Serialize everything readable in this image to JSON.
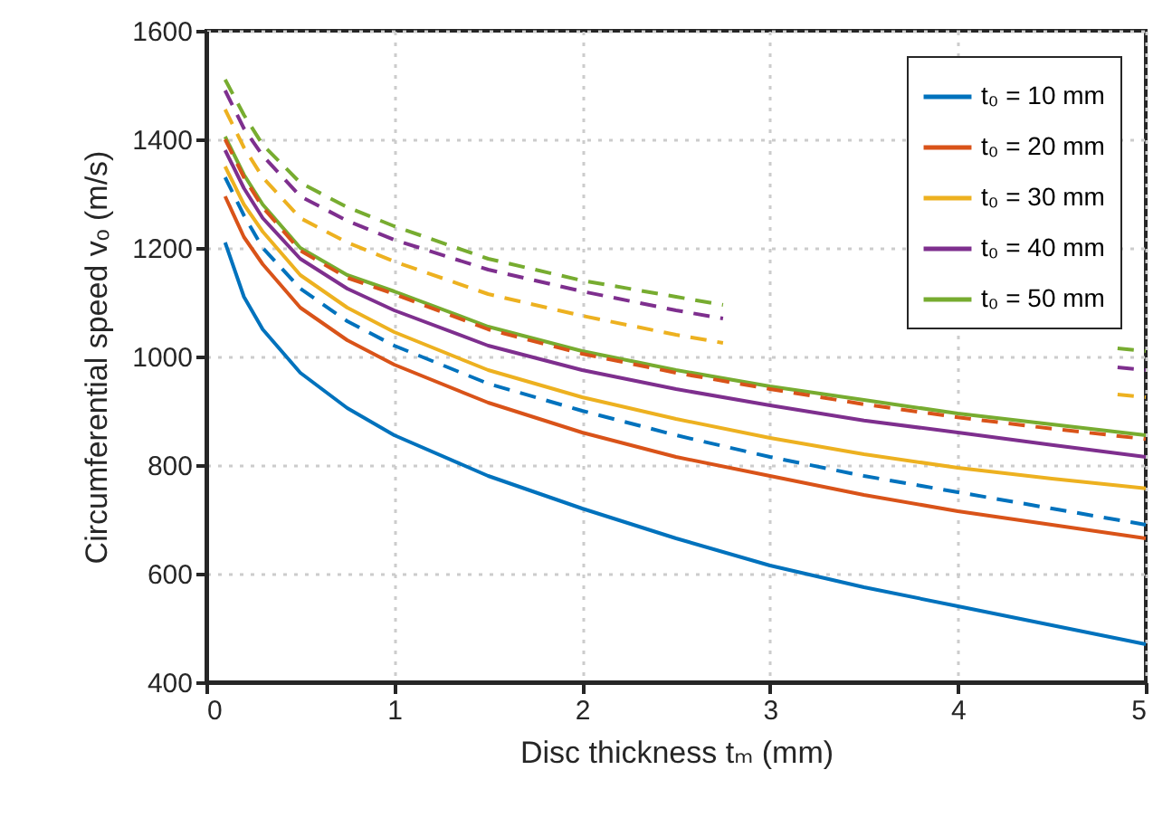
{
  "chart_data": {
    "type": "line",
    "xlabel": "Disc thickness tₘ (mm)",
    "ylabel": "Circumferential speed vₒ (m/s)",
    "x": [
      0.1,
      0.2,
      0.3,
      0.5,
      0.75,
      1,
      1.5,
      2,
      2.5,
      3,
      3.5,
      4,
      4.5,
      5
    ],
    "xlim": [
      0,
      5
    ],
    "xticks": [
      0,
      1,
      2,
      3,
      4,
      5
    ],
    "ylim": [
      400,
      1600
    ],
    "yticks": [
      400,
      600,
      800,
      1000,
      1200,
      1400,
      1600
    ],
    "grid": true,
    "legend": "top right",
    "series": [
      {
        "name": "t₀ = 10 mm",
        "color": "#0072bd",
        "line_style": "solid",
        "values": [
          1210,
          1110,
          1050,
          970,
          905,
          855,
          780,
          720,
          665,
          615,
          575,
          540,
          505,
          470
        ]
      },
      {
        "name": "t₀ = 20 mm",
        "color": "#d95319",
        "line_style": "solid",
        "values": [
          1295,
          1220,
          1170,
          1090,
          1030,
          985,
          915,
          860,
          815,
          780,
          745,
          715,
          690,
          665
        ]
      },
      {
        "name": "t₀ = 30 mm",
        "color": "#edb120",
        "line_style": "solid",
        "values": [
          1350,
          1280,
          1230,
          1150,
          1090,
          1045,
          975,
          925,
          885,
          850,
          820,
          795,
          775,
          757
        ]
      },
      {
        "name": "t₀ = 40 mm",
        "color": "#7e2f8e",
        "line_style": "solid",
        "values": [
          1380,
          1310,
          1255,
          1180,
          1125,
          1085,
          1020,
          975,
          940,
          910,
          882,
          860,
          837,
          815
        ]
      },
      {
        "name": "t₀ = 50 mm",
        "color": "#77ac30",
        "line_style": "solid",
        "values": [
          1405,
          1335,
          1280,
          1200,
          1150,
          1120,
          1055,
          1010,
          975,
          945,
          920,
          895,
          875,
          855
        ]
      },
      {
        "color": "#0072bd",
        "line_style": "dashed",
        "values": [
          1330,
          1260,
          1200,
          1125,
          1065,
          1020,
          950,
          900,
          855,
          815,
          780,
          750,
          720,
          690
        ]
      },
      {
        "color": "#d95319",
        "line_style": "dashed",
        "values": [
          1400,
          1330,
          1275,
          1195,
          1145,
          1115,
          1050,
          1005,
          970,
          940,
          912,
          888,
          867,
          848
        ]
      },
      {
        "color": "#edb120",
        "line_style": "dashed",
        "x": [
          0.1,
          0.2,
          0.3,
          0.5,
          0.75,
          1,
          1.5,
          2,
          2.5,
          2.75,
          3.5,
          4.85,
          5
        ],
        "values": [
          1455,
          1385,
          1330,
          1255,
          1210,
          1175,
          1115,
          1075,
          1040,
          1025,
          null,
          930,
          925
        ]
      },
      {
        "color": "#7e2f8e",
        "line_style": "dashed",
        "x": [
          0.1,
          0.2,
          0.3,
          0.5,
          0.75,
          1,
          1.5,
          2,
          2.5,
          2.75,
          3.5,
          4.85,
          5
        ],
        "values": [
          1490,
          1420,
          1370,
          1295,
          1250,
          1215,
          1160,
          1120,
          1085,
          1070,
          null,
          980,
          975
        ]
      },
      {
        "color": "#77ac30",
        "line_style": "dashed",
        "x": [
          0.1,
          0.2,
          0.3,
          0.5,
          0.75,
          1,
          1.5,
          2,
          2.5,
          2.75,
          3.5,
          4.85,
          5
        ],
        "values": [
          1510,
          1445,
          1390,
          1320,
          1275,
          1240,
          1180,
          1140,
          1110,
          1095,
          null,
          1015,
          1010
        ]
      }
    ]
  }
}
